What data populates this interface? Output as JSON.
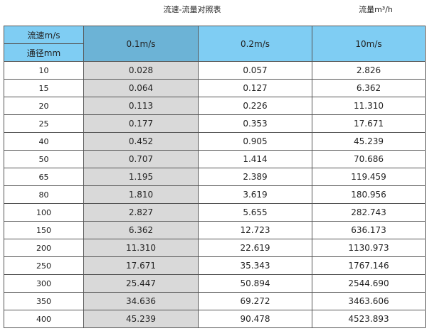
{
  "title": "流速-流量对照表",
  "unit_label": "流量m³/h",
  "header": {
    "velocity_label": "流速m/s",
    "diameter_label": "通径mm",
    "columns": [
      "0.1m/s",
      "0.2m/s",
      "10m/s"
    ]
  },
  "colors": {
    "header_blue": "#7fcdf3",
    "highlight_header": "#6cb3d6",
    "highlight_column": "#d9d9d9"
  },
  "rows": [
    [
      "10",
      "0.028",
      "0.057",
      "2.826"
    ],
    [
      "15",
      "0.064",
      "0.127",
      "6.362"
    ],
    [
      "20",
      "0.113",
      "0.226",
      "11.310"
    ],
    [
      "25",
      "0.177",
      "0.353",
      "17.671"
    ],
    [
      "40",
      "0.452",
      "0.905",
      "45.239"
    ],
    [
      "50",
      "0.707",
      "1.414",
      "70.686"
    ],
    [
      "65",
      "1.195",
      "2.389",
      "119.459"
    ],
    [
      "80",
      "1.810",
      "3.619",
      "180.956"
    ],
    [
      "100",
      "2.827",
      "5.655",
      "282.743"
    ],
    [
      "150",
      "6.362",
      "12.723",
      "636.173"
    ],
    [
      "200",
      "11.310",
      "22.619",
      "1130.973"
    ],
    [
      "250",
      "17.671",
      "35.343",
      "1767.146"
    ],
    [
      "300",
      "25.447",
      "50.894",
      "2544.690"
    ],
    [
      "350",
      "34.636",
      "69.272",
      "3463.606"
    ],
    [
      "400",
      "45.239",
      "90.478",
      "4523.893"
    ]
  ]
}
